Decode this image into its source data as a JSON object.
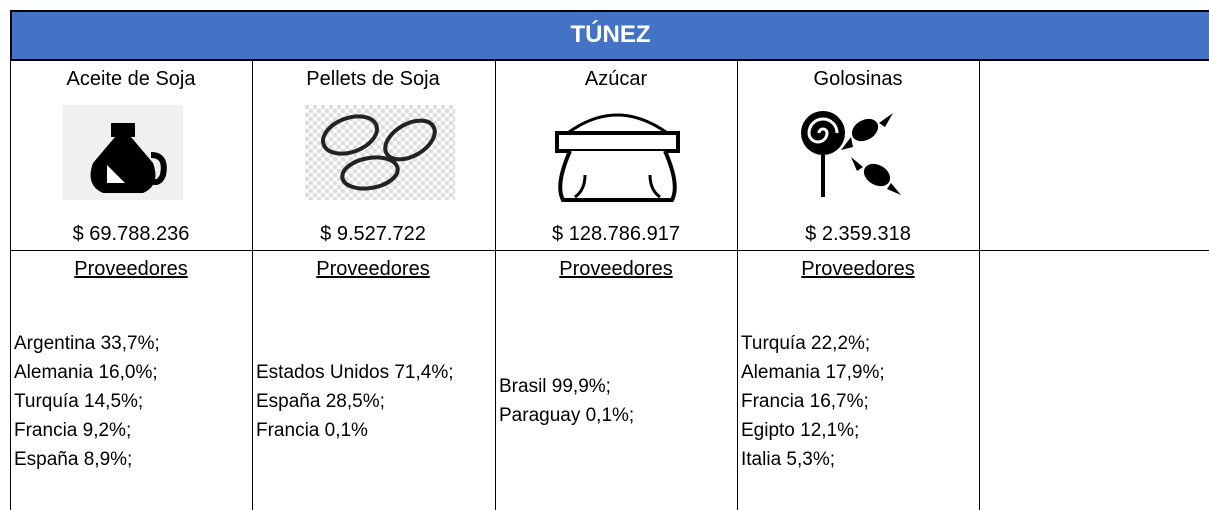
{
  "title": "TÚNEZ",
  "products": [
    {
      "name": "Aceite de Soja",
      "amount": "$ 69.788.236",
      "suppliers_label": "Proveedores",
      "suppliers": [
        "Argentina 33,7%;",
        "Alemania 16,0%;",
        "Turquía 14,5%;",
        "Francia 9,2%;",
        "España 8,9%;"
      ]
    },
    {
      "name": "Pellets de Soja",
      "amount": "$ 9.527.722",
      "suppliers_label": "Proveedores",
      "suppliers": [
        "Estados Unidos 71,4%;",
        "España 28,5%;",
        "Francia 0,1%"
      ]
    },
    {
      "name": "Azúcar",
      "amount": "$ 128.786.917",
      "suppliers_label": "Proveedores",
      "suppliers": [
        "Brasil 99,9%;",
        "Paraguay 0,1%;"
      ]
    },
    {
      "name": "Golosinas",
      "amount": "$ 2.359.318",
      "suppliers_label": "Proveedores",
      "suppliers": [
        "Turquía 22,2%;",
        "Alemania 17,9%;",
        "Francia 16,7%;",
        "Egipto 12,1%;",
        "Italia 5,3%;"
      ]
    }
  ]
}
